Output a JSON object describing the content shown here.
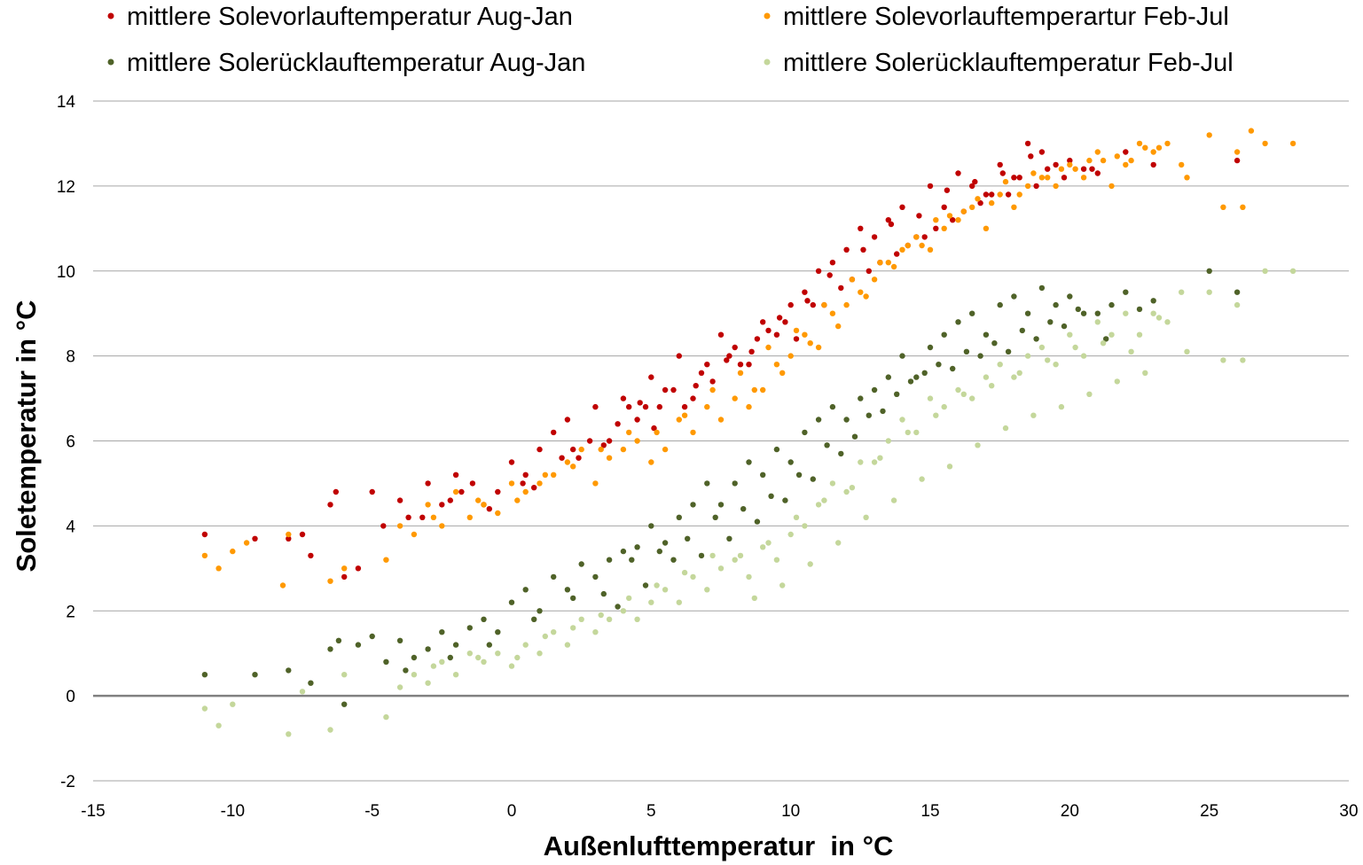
{
  "chart_data": {
    "type": "scatter",
    "title": "",
    "xlabel": "Außenlufttemperatur  in °C",
    "ylabel": "Soletemperatur in °C",
    "xlim": [
      -15,
      30
    ],
    "ylim": [
      -2,
      14
    ],
    "x_ticks": [
      "-15",
      "-10",
      "-5",
      "0",
      "5",
      "10",
      "15",
      "20",
      "25",
      "30"
    ],
    "y_ticks": [
      "-2",
      "0",
      "2",
      "4",
      "6",
      "8",
      "10",
      "12",
      "14"
    ],
    "grid": "horizontal",
    "legend_position": "top",
    "series": [
      {
        "name": "mittlere Solevorlauftemperatur Aug-Jan",
        "color": "#C00000",
        "x": [
          -11,
          -9.2,
          -8,
          -7.5,
          -7.2,
          -6.5,
          -6.3,
          -6,
          -5.5,
          -5,
          -4.6,
          -4,
          -3.7,
          -3,
          -2.5,
          -2,
          -1.4,
          -1,
          -0.5,
          0,
          0.4,
          1,
          1.5,
          2,
          2.2,
          3,
          3.5,
          4,
          4.5,
          5,
          5.3,
          6,
          6.5,
          7,
          7.5,
          8,
          8.5,
          9,
          9.5,
          10,
          10.5,
          11,
          11.5,
          12,
          12.5,
          13,
          13.5,
          14,
          14.5,
          15,
          15.5,
          16,
          16.5,
          17,
          17.5,
          18,
          18.5,
          19,
          19.5,
          20,
          20.5,
          21,
          22,
          23,
          26,
          -3.2,
          -1.8,
          0.5,
          1.8,
          2.8,
          3.8,
          4.8,
          5.8,
          6.8,
          7.8,
          8.8,
          9.8,
          10.8,
          11.8,
          12.8,
          13.8,
          14.8,
          15.8,
          16.8,
          17.8,
          18.8,
          19.8,
          20.8,
          4.2,
          5.5,
          6.2,
          7.2,
          8.2,
          9.2,
          10.2,
          11.2,
          12.2,
          13.2,
          14.2,
          15.2,
          16.2,
          17.2,
          18.2,
          19.2,
          -2.2,
          -0.8,
          0.8,
          2.4,
          3.3,
          4.6,
          5.1,
          6.6,
          7.7,
          8.6,
          9.6,
          10.6,
          11.4,
          12.6,
          13.6,
          14.6,
          15.6,
          16.6,
          17.6,
          18.6
        ],
        "y": [
          3.8,
          3.7,
          3.7,
          3.8,
          3.3,
          4.5,
          4.8,
          2.8,
          3,
          4.8,
          4,
          4.6,
          4.2,
          5,
          4.5,
          5.2,
          5,
          4.5,
          4.8,
          5.5,
          5,
          5.8,
          6.2,
          6.5,
          5.8,
          6.8,
          6,
          7,
          6.5,
          7.5,
          6.8,
          8,
          7,
          7.8,
          8.5,
          8.2,
          7.8,
          8.8,
          8.5,
          9.2,
          9.5,
          10,
          10.2,
          10.5,
          11,
          10.8,
          11.2,
          11.5,
          10.8,
          12,
          11.5,
          12.3,
          12,
          11.8,
          12.5,
          12.2,
          13,
          12.8,
          12.5,
          12.6,
          12.4,
          12.3,
          12.8,
          12.5,
          12.6,
          4.2,
          4.8,
          5.2,
          5.6,
          6,
          6.4,
          6.8,
          7.2,
          7.6,
          8,
          8.4,
          8.8,
          9.2,
          9.6,
          10,
          10.4,
          10.8,
          11.2,
          11.6,
          11.8,
          12,
          12.2,
          12.4,
          6.8,
          7.2,
          6.8,
          7.4,
          7.8,
          8.6,
          8.4,
          9.2,
          9.8,
          10.2,
          10.6,
          11,
          11.4,
          11.8,
          12.2,
          12.4,
          4.6,
          4.4,
          4.9,
          5.6,
          5.9,
          6.9,
          6.3,
          7.3,
          7.9,
          8.1,
          8.9,
          9.3,
          9.9,
          10.5,
          11.1,
          11.3,
          11.9,
          12.1,
          12.3,
          12.7
        ]
      },
      {
        "name": "mittlere Solevorlauftemperartur Feb-Jul",
        "color": "#FF9900",
        "x": [
          -11,
          -10.5,
          -10,
          -9.5,
          -8.2,
          -8,
          -6.5,
          -6,
          -4.5,
          -4,
          -3.5,
          -3,
          -2.5,
          -2,
          -1.5,
          -1,
          -0.5,
          0,
          0.5,
          1,
          1.5,
          2,
          2.5,
          3,
          3.5,
          4,
          4.5,
          5,
          5.5,
          6,
          6.5,
          7,
          7.5,
          8,
          8.5,
          9,
          9.5,
          10,
          10.5,
          11,
          11.5,
          12,
          12.5,
          13,
          13.5,
          14,
          14.5,
          15,
          15.5,
          16,
          16.5,
          17,
          17.5,
          18,
          18.5,
          19,
          19.5,
          20,
          20.5,
          21,
          21.5,
          22,
          22.5,
          23,
          23.5,
          24,
          25,
          26,
          26.5,
          27,
          28,
          -2.8,
          -1.2,
          0.2,
          1.2,
          2.2,
          3.2,
          4.2,
          5.2,
          6.2,
          7.2,
          8.2,
          9.2,
          10.2,
          11.2,
          12.2,
          13.2,
          14.2,
          15.2,
          16.2,
          17.2,
          18.2,
          19.2,
          20.2,
          21.2,
          22.2,
          23.2,
          8.7,
          9.7,
          10.7,
          11.7,
          12.7,
          13.7,
          14.7,
          15.7,
          16.7,
          17.7,
          18.7,
          19.7,
          20.7,
          21.7,
          22.7,
          24.2,
          25.5,
          26.2
        ],
        "y": [
          3.3,
          3,
          3.4,
          3.6,
          2.6,
          3.8,
          2.7,
          3,
          3.2,
          4,
          3.8,
          4.5,
          4,
          4.8,
          4.2,
          4.5,
          4.3,
          5,
          4.8,
          5,
          5.2,
          5.5,
          5.8,
          5,
          5.6,
          5.8,
          6,
          5.5,
          5.8,
          6.5,
          6.2,
          6.8,
          6.5,
          7,
          6.8,
          7.2,
          7.8,
          8,
          8.5,
          8.2,
          9,
          9.2,
          9.5,
          9.8,
          10.2,
          10.5,
          10.8,
          10.5,
          11,
          11.2,
          11.5,
          11,
          11.8,
          11.5,
          12,
          12.2,
          12,
          12.5,
          12.2,
          12.8,
          12,
          12.5,
          13,
          12.8,
          13,
          12.5,
          13.2,
          12.8,
          13.3,
          13,
          13,
          4.2,
          4.6,
          4.6,
          5.2,
          5.4,
          5.8,
          6.2,
          6.2,
          6.6,
          7.2,
          7.6,
          8.2,
          8.6,
          9.2,
          9.8,
          10.2,
          10.6,
          11.2,
          11.4,
          11.6,
          11.8,
          12.2,
          12.4,
          12.6,
          12.6,
          12.9,
          7.2,
          7.6,
          8.3,
          8.7,
          9.4,
          10.1,
          10.6,
          11.3,
          11.7,
          12.1,
          12.3,
          12.4,
          12.6,
          12.7,
          12.9,
          12.2,
          11.5,
          11.5
        ]
      },
      {
        "name": "mittlere Solerücklauftemperatur Aug-Jan",
        "color": "#4F6228",
        "x": [
          -11,
          -9.2,
          -8,
          -7.2,
          -6.5,
          -6.2,
          -6,
          -5.5,
          -5,
          -4.5,
          -4,
          -3.5,
          -3,
          -2.5,
          -2,
          -1.5,
          -1,
          -0.5,
          0,
          0.5,
          1,
          1.5,
          2,
          2.5,
          3,
          3.5,
          4,
          4.5,
          5,
          5.5,
          6,
          6.5,
          7,
          7.5,
          8,
          8.5,
          9,
          9.5,
          10,
          10.5,
          11,
          11.5,
          12,
          12.5,
          13,
          13.5,
          14,
          14.5,
          15,
          15.5,
          16,
          16.5,
          17,
          17.5,
          18,
          18.5,
          19,
          19.5,
          20,
          20.5,
          21,
          21.5,
          22,
          22.5,
          23,
          25,
          26,
          -3.8,
          -2.2,
          -0.8,
          0.8,
          2.2,
          3.3,
          4.3,
          5.3,
          6.3,
          7.3,
          8.3,
          9.3,
          10.3,
          11.3,
          12.3,
          13.3,
          14.3,
          15.3,
          16.3,
          17.3,
          18.3,
          19.3,
          20.3,
          3.8,
          4.8,
          5.8,
          6.8,
          7.8,
          8.8,
          9.8,
          10.8,
          11.8,
          12.8,
          13.8,
          14.8,
          15.8,
          16.8,
          17.8,
          18.8,
          19.8,
          21.3
        ],
        "y": [
          0.5,
          0.5,
          0.6,
          0.3,
          1.1,
          1.3,
          -0.2,
          1.2,
          1.4,
          0.8,
          1.3,
          0.9,
          1.1,
          1.5,
          1.2,
          1.6,
          1.8,
          1.5,
          2.2,
          2.5,
          2,
          2.8,
          2.5,
          3.1,
          2.8,
          3.2,
          3.4,
          3.5,
          4,
          3.6,
          4.2,
          4.5,
          5,
          4.5,
          5,
          5.5,
          5.2,
          5.8,
          5.5,
          6.2,
          6.5,
          6.8,
          6.5,
          7,
          7.2,
          7.5,
          8,
          7.5,
          8.2,
          8.5,
          8.8,
          9,
          8.5,
          9.2,
          9.4,
          9,
          9.6,
          9.2,
          9.4,
          9,
          9,
          9.2,
          9.5,
          9.1,
          9.3,
          10,
          9.5,
          0.6,
          0.9,
          1.2,
          1.8,
          2.3,
          2.4,
          3.2,
          3.4,
          3.7,
          4.2,
          4.4,
          4.7,
          5.2,
          5.9,
          6.1,
          6.7,
          7.4,
          7.8,
          8.1,
          8.3,
          8.6,
          8.8,
          9.1,
          2.1,
          2.6,
          3.2,
          3.3,
          3.7,
          4.1,
          4.6,
          5.1,
          5.7,
          6.6,
          7.1,
          7.6,
          7.7,
          8,
          8.1,
          8.4,
          8.7,
          8.4
        ]
      },
      {
        "name": "mittlere Solerücklauftemperatur Feb-Jul",
        "color": "#C4D79B",
        "x": [
          -11,
          -10.5,
          -10,
          -8,
          -7.5,
          -6.5,
          -6,
          -4.5,
          -4,
          -3.5,
          -3,
          -2.5,
          -2,
          -1.5,
          -1,
          -0.5,
          0,
          0.5,
          1,
          1.5,
          2,
          2.5,
          3,
          3.5,
          4,
          4.5,
          5,
          5.5,
          6,
          6.5,
          7,
          7.5,
          8,
          8.5,
          9,
          9.5,
          10,
          10.5,
          11,
          11.5,
          12,
          12.5,
          13,
          13.5,
          14,
          14.5,
          15,
          15.5,
          16,
          16.5,
          17,
          17.5,
          18,
          18.5,
          19,
          19.5,
          20,
          20.5,
          21,
          21.5,
          22,
          22.5,
          23,
          23.5,
          24,
          25,
          26,
          27,
          28,
          -2.8,
          -1.2,
          0.2,
          1.2,
          2.2,
          3.2,
          4.2,
          5.2,
          6.2,
          7.2,
          8.2,
          9.2,
          10.2,
          11.2,
          12.2,
          13.2,
          14.2,
          15.2,
          16.2,
          17.2,
          18.2,
          19.2,
          20.2,
          21.2,
          22.2,
          23.2,
          8.7,
          9.7,
          10.7,
          11.7,
          12.7,
          13.7,
          14.7,
          15.7,
          16.7,
          17.7,
          18.7,
          19.7,
          20.7,
          21.7,
          22.7,
          24.2,
          25.5,
          26.2
        ],
        "y": [
          -0.3,
          -0.7,
          -0.2,
          -0.9,
          0.1,
          -0.8,
          0.5,
          -0.5,
          0.2,
          0.5,
          0.3,
          0.8,
          0.5,
          1,
          0.8,
          1,
          0.7,
          1.2,
          1,
          1.5,
          1.2,
          1.8,
          1.5,
          1.8,
          2,
          1.8,
          2.2,
          2.5,
          2.2,
          2.8,
          2.5,
          3,
          3.2,
          2.8,
          3.5,
          3.2,
          3.8,
          4,
          4.5,
          5,
          4.8,
          5.5,
          5.5,
          6,
          6.5,
          6.2,
          7,
          6.8,
          7.2,
          7,
          7.5,
          7.8,
          7.5,
          8,
          8.2,
          7.8,
          8.5,
          8,
          8.8,
          8.5,
          9,
          8.5,
          9,
          8.8,
          9.5,
          9.5,
          9.2,
          10,
          10,
          0.7,
          0.9,
          0.9,
          1.4,
          1.6,
          1.9,
          2.3,
          2.6,
          2.9,
          3.3,
          3.3,
          3.6,
          4.2,
          4.6,
          4.9,
          5.6,
          6.2,
          6.6,
          7.1,
          7.3,
          7.6,
          7.9,
          8.2,
          8.3,
          8.1,
          8.9,
          2.3,
          2.6,
          3.1,
          3.6,
          4.2,
          4.6,
          5.1,
          5.4,
          5.9,
          6.3,
          6.6,
          6.8,
          7.1,
          7.4,
          7.6,
          8.1,
          7.9,
          7.9
        ]
      }
    ]
  }
}
